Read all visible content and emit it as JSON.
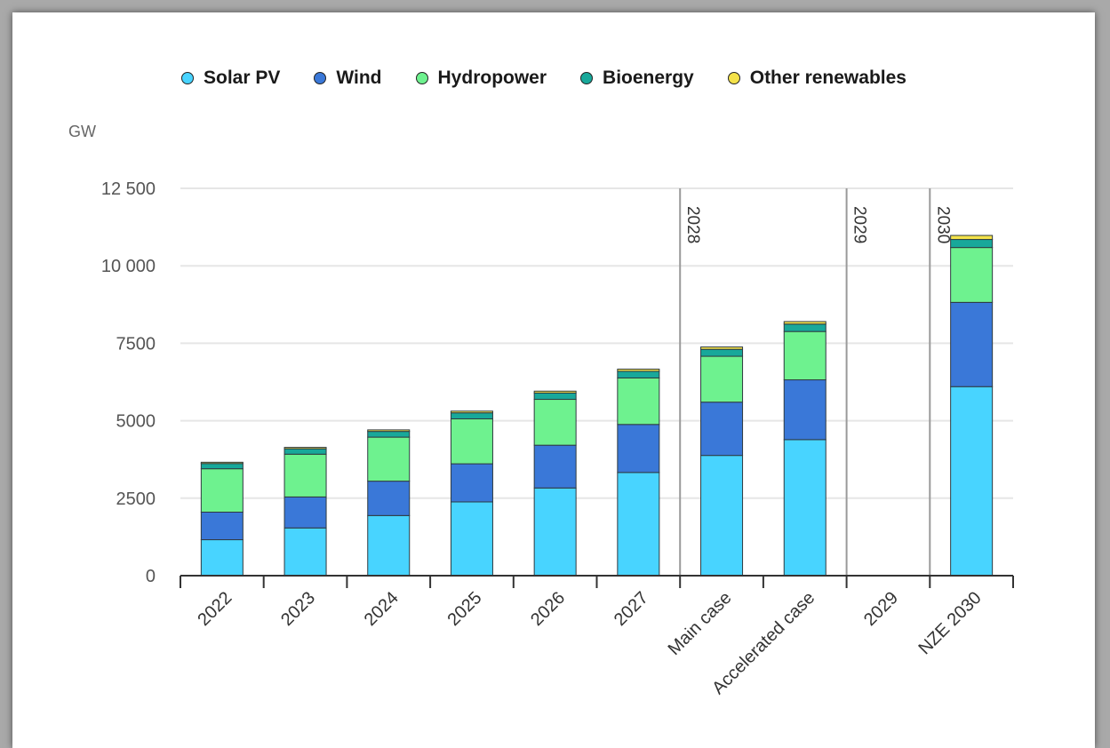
{
  "chart_data": {
    "type": "bar",
    "stacked": true,
    "unit_label": "GW",
    "categories": [
      "2022",
      "2023",
      "2024",
      "2025",
      "2026",
      "2027",
      "Main case",
      "Accelerated case",
      "2029",
      "NZE 2030"
    ],
    "series": [
      {
        "name": "Solar PV",
        "color": "#48d4ff",
        "values": [
          1160,
          1540,
          1940,
          2380,
          2830,
          3330,
          3880,
          4390,
          null,
          6100
        ]
      },
      {
        "name": "Wind",
        "color": "#3a78d8",
        "values": [
          890,
          1000,
          1110,
          1230,
          1380,
          1550,
          1720,
          1930,
          null,
          2720
        ]
      },
      {
        "name": "Hydropower",
        "color": "#6ef28f",
        "values": [
          1400,
          1380,
          1420,
          1450,
          1480,
          1500,
          1480,
          1560,
          null,
          1770
        ]
      },
      {
        "name": "Bioenergy",
        "color": "#18a89a",
        "values": [
          170,
          175,
          185,
          195,
          205,
          215,
          225,
          240,
          null,
          260
        ]
      },
      {
        "name": "Other renewables",
        "color": "#f4e24a",
        "values": [
          40,
          45,
          50,
          55,
          60,
          70,
          75,
          80,
          null,
          130
        ]
      }
    ],
    "ylim": [
      0,
      12500
    ],
    "yticks": [
      {
        "value": 0,
        "label": "0"
      },
      {
        "value": 2500,
        "label": "2500"
      },
      {
        "value": 5000,
        "label": "5000"
      },
      {
        "value": 7500,
        "label": "7500"
      },
      {
        "value": 10000,
        "label": "10 000"
      },
      {
        "value": 12500,
        "label": "12 500"
      }
    ],
    "dividers": [
      {
        "after_category": 5,
        "label": "2028"
      },
      {
        "after_category": 7,
        "label": "2029"
      },
      {
        "after_category": 8,
        "label": "2030"
      }
    ],
    "grid": true,
    "legend_position": "top"
  }
}
